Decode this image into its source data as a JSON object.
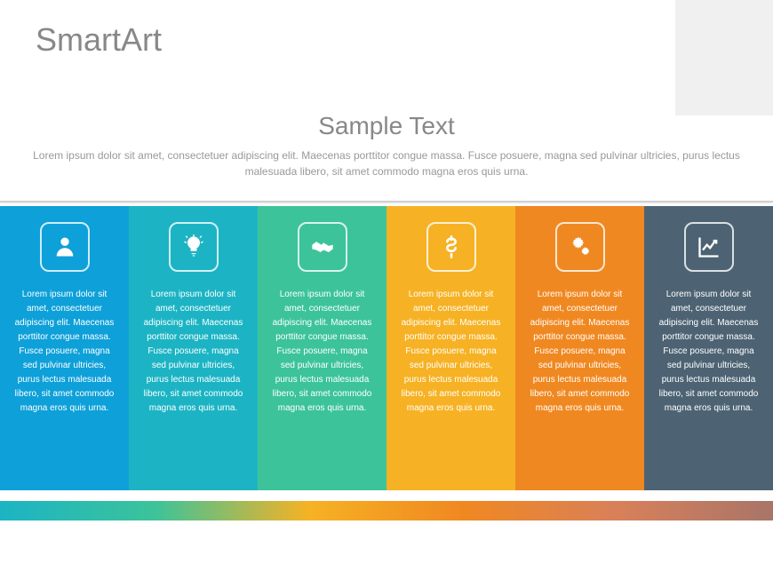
{
  "header": {
    "title": "SmartArt"
  },
  "subtitle_section": {
    "subtitle": "Sample Text",
    "description": "Lorem ipsum dolor sit amet, consectetuer adipiscing elit. Maecenas porttitor congue massa. Fusce posuere, magna sed pulvinar ultricies, purus lectus malesuada libero, sit amet commodo magna eros quis urna."
  },
  "columns": [
    {
      "icon": "person",
      "color": "#0ea0d9",
      "text": "Lorem ipsum dolor sit amet, consectetuer adipiscing elit. Maecenas porttitor congue massa. Fusce posuere, magna sed pulvinar ultricies, purus lectus malesuada libero, sit amet commodo magna eros quis urna."
    },
    {
      "icon": "lightbulb",
      "color": "#1cb4c4",
      "text": "Lorem ipsum dolor sit amet, consectetuer adipiscing elit. Maecenas porttitor congue massa. Fusce posuere, magna sed pulvinar ultricies, purus lectus malesuada libero, sit amet commodo magna eros quis urna."
    },
    {
      "icon": "handshake",
      "color": "#3cc39a",
      "text": "Lorem ipsum dolor sit amet, consectetuer adipiscing elit. Maecenas porttitor congue massa. Fusce posuere, magna sed pulvinar ultricies, purus lectus malesuada libero, sit amet commodo magna eros quis urna."
    },
    {
      "icon": "dollar",
      "color": "#f6b224",
      "text": "Lorem ipsum dolor sit amet, consectetuer adipiscing elit. Maecenas porttitor congue massa. Fusce posuere, magna sed pulvinar ultricies, purus lectus malesuada libero, sit amet commodo magna eros quis urna."
    },
    {
      "icon": "gears",
      "color": "#f08821",
      "text": "Lorem ipsum dolor sit amet, consectetuer adipiscing elit. Maecenas porttitor congue massa. Fusce posuere, magna sed pulvinar ultricies, purus lectus malesuada libero, sit amet commodo magna eros quis urna."
    },
    {
      "icon": "chart",
      "color": "#4d6373",
      "text": "Lorem ipsum dolor sit amet, consectetuer adipiscing elit. Maecenas porttitor congue massa. Fusce posuere, magna sed pulvinar ultricies, purus lectus malesuada libero, sit amet commodo magna eros quis urna."
    }
  ],
  "gradient_bar": {
    "stops": [
      "#1cb4c4",
      "#3cc39a",
      "#f6b224",
      "#f08821",
      "#d8805a",
      "#a87568"
    ]
  },
  "styling": {
    "title_color": "#888888",
    "subtitle_color": "#888888",
    "description_color": "#999999",
    "background": "#ffffff",
    "corner_block_color": "#f0f0f0",
    "icon_border_radius": 10,
    "column_text_fontsize": 10,
    "title_fontsize": 36,
    "subtitle_fontsize": 28
  }
}
